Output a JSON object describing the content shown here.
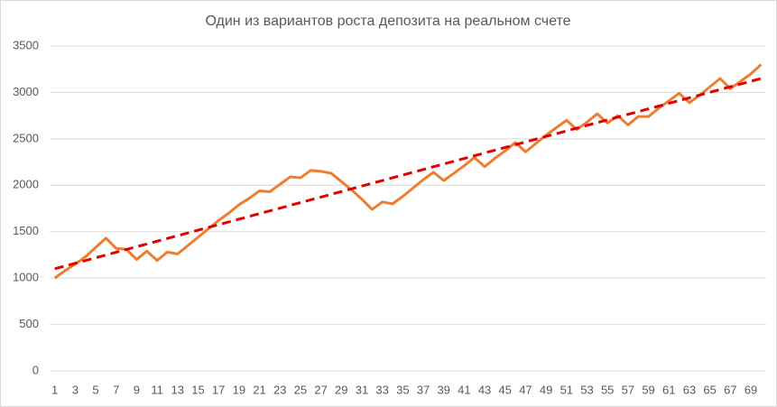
{
  "chart_data": {
    "type": "line",
    "title": "Один из вариантов роста депозита на реальном счете",
    "categories": [
      1,
      null,
      3,
      null,
      5,
      null,
      7,
      null,
      9,
      null,
      11,
      null,
      13,
      null,
      15,
      null,
      17,
      null,
      19,
      null,
      21,
      null,
      23,
      null,
      25,
      null,
      27,
      null,
      29,
      null,
      31,
      null,
      33,
      null,
      35,
      null,
      37,
      null,
      39,
      null,
      41,
      null,
      43,
      null,
      45,
      null,
      47,
      null,
      49,
      null,
      51,
      null,
      53,
      null,
      55,
      null,
      57,
      null,
      59,
      null,
      61,
      null,
      63,
      null,
      65,
      null,
      67,
      null,
      69,
      null
    ],
    "series": [
      {
        "color": "#ed7d31",
        "values": [
          1000,
          1080,
          1150,
          1230,
          1330,
          1430,
          1320,
          1310,
          1200,
          1290,
          1190,
          1280,
          1260,
          1350,
          1440,
          1530,
          1620,
          1700,
          1790,
          1860,
          1940,
          1930,
          2010,
          2090,
          2080,
          2160,
          2150,
          2130,
          2040,
          1950,
          1850,
          1740,
          1820,
          1800,
          1880,
          1970,
          2060,
          2140,
          2050,
          2130,
          2210,
          2300,
          2200,
          2290,
          2370,
          2460,
          2360,
          2450,
          2540,
          2620,
          2700,
          2600,
          2680,
          2770,
          2670,
          2750,
          2650,
          2740,
          2740,
          2830,
          2910,
          2990,
          2890,
          2970,
          3060,
          3150,
          3040,
          3120,
          3200,
          3300
        ]
      }
    ],
    "trendline": {
      "color": "#e00000",
      "values": [
        1100,
        3150
      ]
    },
    "ylim": [
      0,
      3500
    ],
    "yticks": [
      0,
      500,
      1000,
      1500,
      2000,
      2500,
      3000,
      3500
    ],
    "grid": true
  }
}
